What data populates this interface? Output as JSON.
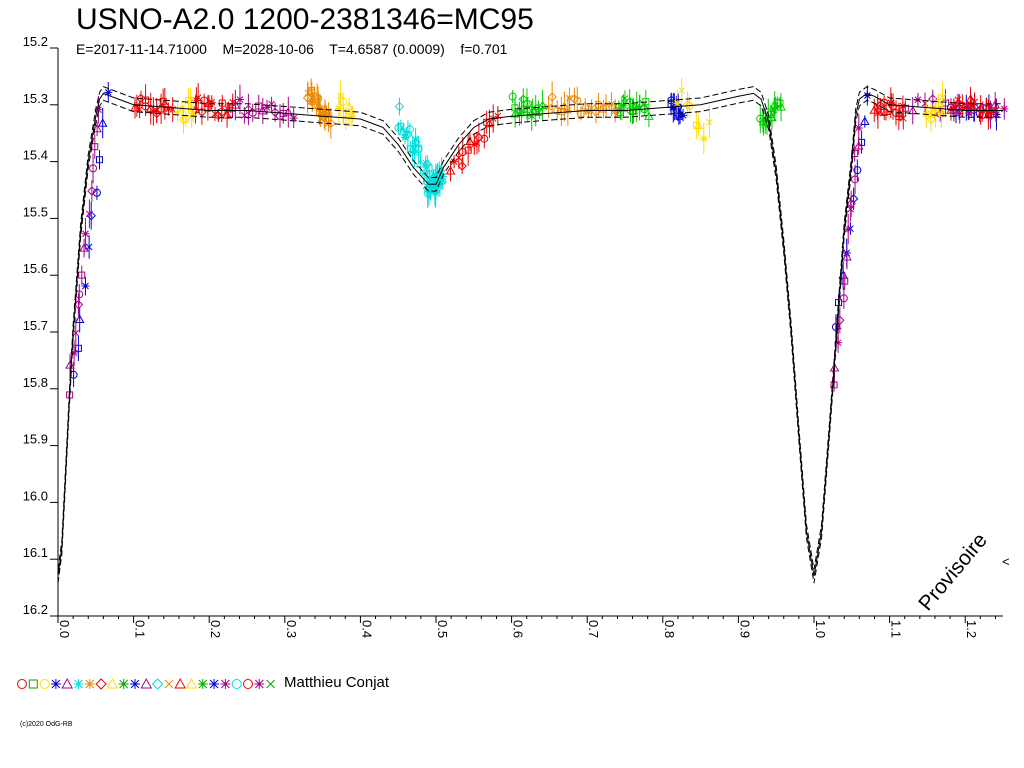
{
  "chart_data": {
    "type": "scatter",
    "title": "USNO-A2.0 1200-2381346=MC95",
    "subtitle": "E=2017-11-14.71000    M=2028-10-06    T=4.6587 (0.0009)    f=0.701",
    "xlabel": "",
    "ylabel": "",
    "xlim": [
      0.0,
      1.25
    ],
    "ylim": [
      16.2,
      15.2
    ],
    "y_inverted": true,
    "x_ticks": [
      "0.0",
      "0.1",
      "0.2",
      "0.3",
      "0.4",
      "0.5",
      "0.6",
      "0.7",
      "0.8",
      "0.9",
      "1.0",
      "1.1",
      "1.2"
    ],
    "y_ticks": [
      "15.2",
      "15.3",
      "15.4",
      "15.5",
      "15.6",
      "15.7",
      "15.8",
      "15.9",
      "16.0",
      "16.1",
      "16.2"
    ],
    "grid": false,
    "annotation": "Provisoire",
    "arrow_glyph": "<",
    "legend_author": "Matthieu Conjat",
    "copyright": "(c)2020 OdG-RB",
    "model_curve": {
      "phase": [
        0.0,
        0.005,
        0.01,
        0.015,
        0.02,
        0.03,
        0.04,
        0.05,
        0.055,
        0.06,
        0.07,
        0.08,
        0.1,
        0.15,
        0.2,
        0.25,
        0.3,
        0.35,
        0.4,
        0.43,
        0.45,
        0.47,
        0.49,
        0.5,
        0.51,
        0.53,
        0.55,
        0.57,
        0.6,
        0.65,
        0.7,
        0.75,
        0.8,
        0.85,
        0.9,
        0.92,
        0.93,
        0.94,
        0.95,
        0.96,
        0.97,
        0.98,
        0.99,
        1.0,
        1.01,
        1.02,
        1.03,
        1.04,
        1.05,
        1.055,
        1.06,
        1.07,
        1.08,
        1.1,
        1.15,
        1.2,
        1.25
      ],
      "mag": [
        16.13,
        16.08,
        15.95,
        15.82,
        15.7,
        15.52,
        15.4,
        15.32,
        15.29,
        15.28,
        15.285,
        15.29,
        15.3,
        15.305,
        15.31,
        15.31,
        15.315,
        15.32,
        15.325,
        15.34,
        15.37,
        15.41,
        15.44,
        15.44,
        15.41,
        15.37,
        15.34,
        15.325,
        15.32,
        15.315,
        15.31,
        15.31,
        15.305,
        15.3,
        15.285,
        15.28,
        15.29,
        15.33,
        15.42,
        15.55,
        15.7,
        15.88,
        16.05,
        16.13,
        16.05,
        15.88,
        15.7,
        15.52,
        15.4,
        15.32,
        15.29,
        15.28,
        15.285,
        15.3,
        15.305,
        15.31,
        15.31
      ],
      "curve_spread": 0.012
    },
    "series": [
      {
        "color": "#0000dd",
        "segments": [
          [
            0.02,
            0.065,
            15.78,
            15.28
          ],
          [
            0.81,
            0.825,
            15.3,
            15.32
          ],
          [
            1.03,
            1.07,
            15.7,
            15.28
          ],
          [
            1.18,
            1.24,
            15.3,
            15.31
          ]
        ],
        "n": 40,
        "scatter": 0.012
      },
      {
        "color": "#aa0088",
        "segments": [
          [
            0.015,
            0.055,
            15.8,
            15.32
          ],
          [
            0.23,
            0.31,
            15.3,
            15.32
          ],
          [
            1.025,
            1.06,
            15.8,
            15.33
          ],
          [
            1.12,
            1.25,
            15.3,
            15.31
          ]
        ],
        "n": 60,
        "scatter": 0.015
      },
      {
        "color": "#ee0000",
        "segments": [
          [
            0.1,
            0.15,
            15.3,
            15.31
          ],
          [
            0.18,
            0.23,
            15.3,
            15.31
          ],
          [
            0.52,
            0.58,
            15.42,
            15.32
          ],
          [
            1.08,
            1.12,
            15.3,
            15.31
          ],
          [
            1.18,
            1.24,
            15.3,
            15.31
          ]
        ],
        "n": 75,
        "scatter": 0.015
      },
      {
        "color": "#ffdd00",
        "segments": [
          [
            0.16,
            0.18,
            15.32,
            15.3
          ],
          [
            0.37,
            0.39,
            15.3,
            15.32
          ],
          [
            0.82,
            0.86,
            15.28,
            15.35
          ],
          [
            1.15,
            1.17,
            15.31,
            15.3
          ]
        ],
        "n": 30,
        "scatter": 0.02
      },
      {
        "color": "#ee8800",
        "segments": [
          [
            0.33,
            0.36,
            15.28,
            15.33
          ],
          [
            0.65,
            0.74,
            15.3,
            15.31
          ]
        ],
        "n": 40,
        "scatter": 0.015
      },
      {
        "color": "#00dddd",
        "segments": [
          [
            0.45,
            0.5,
            15.32,
            15.45
          ],
          [
            0.49,
            0.51,
            15.45,
            15.42
          ]
        ],
        "n": 50,
        "scatter": 0.02
      },
      {
        "color": "#00cc00",
        "segments": [
          [
            0.6,
            0.64,
            15.3,
            15.31
          ],
          [
            0.74,
            0.78,
            15.3,
            15.31
          ],
          [
            0.93,
            0.955,
            15.33,
            15.3
          ]
        ],
        "n": 45,
        "scatter": 0.015
      }
    ]
  }
}
